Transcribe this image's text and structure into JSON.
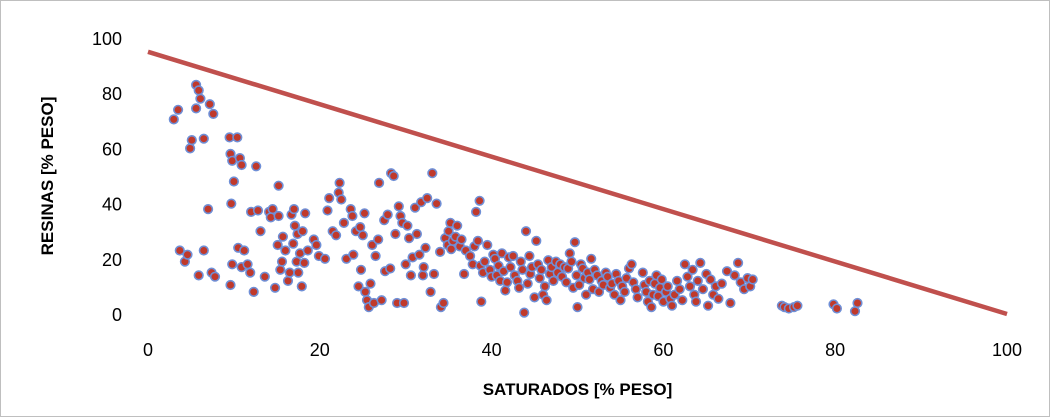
{
  "chart_data": {
    "type": "scatter",
    "title": "",
    "xlabel": "SATURADOS [% PESO]",
    "ylabel": "RESINAS [% PESO]",
    "xlim": [
      0,
      100
    ],
    "ylim": [
      0,
      100
    ],
    "x_ticks": [
      "0",
      "20",
      "40",
      "60",
      "80",
      "100"
    ],
    "y_ticks": [
      "0",
      "20",
      "40",
      "60",
      "80",
      "100"
    ],
    "grid": false,
    "legend": "none",
    "marker_fill": "#c0392b",
    "marker_edge": "#6f8fd6",
    "line_color": "#c0504d",
    "lines": [
      {
        "x": [
          0,
          100
        ],
        "y": [
          95,
          0
        ]
      }
    ],
    "points": [
      [
        3.0,
        70.5
      ],
      [
        3.5,
        74
      ],
      [
        3.7,
        23
      ],
      [
        4.3,
        19
      ],
      [
        4.6,
        21.5
      ],
      [
        4.9,
        60
      ],
      [
        5.1,
        63
      ],
      [
        5.6,
        83
      ],
      [
        5.9,
        81
      ],
      [
        5.6,
        74.5
      ],
      [
        6.1,
        78
      ],
      [
        5.9,
        14
      ],
      [
        6.5,
        63.5
      ],
      [
        6.5,
        23
      ],
      [
        7.0,
        38
      ],
      [
        7.2,
        76
      ],
      [
        7.6,
        72.5
      ],
      [
        7.4,
        15
      ],
      [
        7.8,
        13.5
      ],
      [
        9.5,
        64
      ],
      [
        9.6,
        58
      ],
      [
        9.8,
        55.5
      ],
      [
        10.0,
        48
      ],
      [
        10.4,
        64
      ],
      [
        10.7,
        56.5
      ],
      [
        10.9,
        54
      ],
      [
        9.7,
        40
      ],
      [
        9.8,
        18
      ],
      [
        9.6,
        10.5
      ],
      [
        10.5,
        24
      ],
      [
        10.9,
        17
      ],
      [
        11.2,
        23
      ],
      [
        11.6,
        18
      ],
      [
        11.9,
        15
      ],
      [
        12.0,
        37
      ],
      [
        12.3,
        8
      ],
      [
        12.6,
        53.5
      ],
      [
        12.8,
        37.5
      ],
      [
        13.1,
        30
      ],
      [
        13.6,
        13.5
      ],
      [
        14.1,
        37
      ],
      [
        14.5,
        38
      ],
      [
        14.3,
        35
      ],
      [
        14.8,
        9.5
      ],
      [
        15.1,
        25
      ],
      [
        15.2,
        35.5
      ],
      [
        15.2,
        46.5
      ],
      [
        15.4,
        16
      ],
      [
        15.6,
        19
      ],
      [
        15.7,
        28
      ],
      [
        16.0,
        23
      ],
      [
        16.3,
        12
      ],
      [
        16.5,
        15
      ],
      [
        16.7,
        36
      ],
      [
        16.9,
        25.5
      ],
      [
        17.0,
        38
      ],
      [
        17.1,
        32
      ],
      [
        17.3,
        19
      ],
      [
        17.4,
        29
      ],
      [
        17.5,
        15
      ],
      [
        17.7,
        22
      ],
      [
        17.9,
        10
      ],
      [
        18.0,
        30
      ],
      [
        18.2,
        18.5
      ],
      [
        18.3,
        36.5
      ],
      [
        18.6,
        23
      ],
      [
        19.3,
        27
      ],
      [
        19.6,
        25
      ],
      [
        19.9,
        21
      ],
      [
        20.6,
        20
      ],
      [
        20.9,
        37.5
      ],
      [
        21.1,
        42
      ],
      [
        21.5,
        30
      ],
      [
        21.9,
        28.5
      ],
      [
        22.2,
        44
      ],
      [
        22.3,
        47.5
      ],
      [
        22.5,
        41.5
      ],
      [
        22.8,
        33
      ],
      [
        23.1,
        20
      ],
      [
        23.6,
        38
      ],
      [
        23.8,
        35.5
      ],
      [
        23.9,
        21.5
      ],
      [
        24.2,
        30
      ],
      [
        24.5,
        10
      ],
      [
        24.7,
        31.5
      ],
      [
        24.8,
        16
      ],
      [
        25.0,
        28.5
      ],
      [
        25.2,
        36.5
      ],
      [
        25.3,
        8
      ],
      [
        25.5,
        5
      ],
      [
        25.7,
        2.5
      ],
      [
        25.9,
        11
      ],
      [
        26.1,
        25
      ],
      [
        26.3,
        4
      ],
      [
        26.5,
        21
      ],
      [
        26.8,
        27
      ],
      [
        26.9,
        47.5
      ],
      [
        27.2,
        5
      ],
      [
        27.5,
        34
      ],
      [
        27.6,
        15.5
      ],
      [
        27.9,
        36
      ],
      [
        28.2,
        16.5
      ],
      [
        28.3,
        51
      ],
      [
        28.6,
        50
      ],
      [
        28.8,
        29
      ],
      [
        29.0,
        4
      ],
      [
        29.2,
        39
      ],
      [
        29.4,
        35.5
      ],
      [
        29.6,
        33
      ],
      [
        29.8,
        4
      ],
      [
        30.0,
        18
      ],
      [
        30.2,
        32
      ],
      [
        30.4,
        27.5
      ],
      [
        30.6,
        14
      ],
      [
        30.8,
        20.5
      ],
      [
        31.1,
        38.5
      ],
      [
        31.3,
        29
      ],
      [
        31.6,
        21.5
      ],
      [
        31.8,
        40.5
      ],
      [
        32.0,
        14
      ],
      [
        32.1,
        17
      ],
      [
        32.3,
        24
      ],
      [
        32.5,
        42
      ],
      [
        32.9,
        8
      ],
      [
        33.1,
        51
      ],
      [
        33.3,
        14.5
      ],
      [
        33.6,
        40
      ],
      [
        34.0,
        22.5
      ],
      [
        34.1,
        2.5
      ],
      [
        34.4,
        4
      ],
      [
        34.6,
        27.5
      ],
      [
        34.9,
        25
      ],
      [
        35.0,
        30
      ],
      [
        35.2,
        33
      ],
      [
        35.3,
        23.5
      ],
      [
        35.5,
        26.5
      ],
      [
        35.8,
        28
      ],
      [
        36.0,
        32
      ],
      [
        36.3,
        24.5
      ],
      [
        36.5,
        27
      ],
      [
        36.8,
        14.5
      ],
      [
        37.0,
        23
      ],
      [
        37.5,
        21
      ],
      [
        37.8,
        18
      ],
      [
        38.0,
        24.5
      ],
      [
        38.2,
        37
      ],
      [
        38.4,
        26.5
      ],
      [
        38.6,
        41
      ],
      [
        38.7,
        17.5
      ],
      [
        38.8,
        4.5
      ],
      [
        39.0,
        15
      ],
      [
        39.2,
        19
      ],
      [
        39.5,
        25
      ],
      [
        39.8,
        16
      ],
      [
        40.0,
        13.5
      ],
      [
        40.2,
        21.5
      ],
      [
        40.4,
        20
      ],
      [
        40.6,
        14
      ],
      [
        40.8,
        17.5
      ],
      [
        41.0,
        12
      ],
      [
        41.2,
        22
      ],
      [
        41.4,
        15.5
      ],
      [
        41.6,
        8.5
      ],
      [
        41.8,
        11.5
      ],
      [
        42.0,
        20.5
      ],
      [
        42.2,
        17
      ],
      [
        42.5,
        21
      ],
      [
        42.7,
        14
      ],
      [
        43.0,
        12
      ],
      [
        43.2,
        9.5
      ],
      [
        43.4,
        19
      ],
      [
        43.6,
        16
      ],
      [
        43.8,
        0.5
      ],
      [
        44.0,
        30
      ],
      [
        44.2,
        11
      ],
      [
        44.4,
        21
      ],
      [
        44.5,
        14.5
      ],
      [
        44.7,
        17
      ],
      [
        45.0,
        6
      ],
      [
        45.2,
        26.5
      ],
      [
        45.4,
        18
      ],
      [
        45.6,
        13
      ],
      [
        45.8,
        16
      ],
      [
        46.0,
        7
      ],
      [
        46.2,
        10
      ],
      [
        46.4,
        5
      ],
      [
        46.6,
        19.5
      ],
      [
        46.8,
        14.5
      ],
      [
        47.0,
        17
      ],
      [
        47.2,
        12
      ],
      [
        47.5,
        19
      ],
      [
        47.7,
        15
      ],
      [
        48.0,
        18
      ],
      [
        48.2,
        13.5
      ],
      [
        48.5,
        17
      ],
      [
        48.7,
        11.5
      ],
      [
        48.9,
        16.5
      ],
      [
        49.1,
        22
      ],
      [
        49.3,
        19
      ],
      [
        49.5,
        9.5
      ],
      [
        49.7,
        26
      ],
      [
        49.9,
        14
      ],
      [
        50.0,
        2.5
      ],
      [
        50.2,
        10.5
      ],
      [
        50.4,
        18
      ],
      [
        50.6,
        16.5
      ],
      [
        50.8,
        13
      ],
      [
        51.0,
        7
      ],
      [
        51.2,
        15
      ],
      [
        51.4,
        12.5
      ],
      [
        51.6,
        20
      ],
      [
        51.8,
        9
      ],
      [
        52.0,
        16
      ],
      [
        52.3,
        14
      ],
      [
        52.5,
        8
      ],
      [
        52.8,
        12
      ],
      [
        53.0,
        10.5
      ],
      [
        53.3,
        15
      ],
      [
        53.5,
        13.5
      ],
      [
        53.8,
        9.5
      ],
      [
        54.0,
        11
      ],
      [
        54.3,
        7
      ],
      [
        54.5,
        14.5
      ],
      [
        54.8,
        12
      ],
      [
        55.0,
        5
      ],
      [
        55.2,
        10
      ],
      [
        55.5,
        8
      ],
      [
        55.7,
        13
      ],
      [
        56.0,
        16.5
      ],
      [
        56.3,
        18
      ],
      [
        56.5,
        11.5
      ],
      [
        56.8,
        9
      ],
      [
        57.0,
        6
      ],
      [
        57.6,
        15
      ],
      [
        57.8,
        10.5
      ],
      [
        58.0,
        8
      ],
      [
        58.2,
        4.5
      ],
      [
        58.4,
        12
      ],
      [
        58.6,
        2.5
      ],
      [
        58.8,
        7
      ],
      [
        59.0,
        11
      ],
      [
        59.2,
        14
      ],
      [
        59.4,
        6.5
      ],
      [
        59.6,
        9.5
      ],
      [
        59.8,
        12.5
      ],
      [
        60.0,
        4.5
      ],
      [
        60.3,
        8
      ],
      [
        60.5,
        10
      ],
      [
        60.8,
        5.5
      ],
      [
        61.0,
        3
      ],
      [
        61.3,
        7
      ],
      [
        61.6,
        12
      ],
      [
        61.9,
        9
      ],
      [
        62.2,
        5
      ],
      [
        62.5,
        18
      ],
      [
        62.8,
        13.5
      ],
      [
        63.1,
        10
      ],
      [
        63.4,
        16
      ],
      [
        63.6,
        7
      ],
      [
        63.8,
        4.5
      ],
      [
        64.0,
        12
      ],
      [
        64.3,
        18.5
      ],
      [
        64.6,
        9
      ],
      [
        65.0,
        14.5
      ],
      [
        65.2,
        3
      ],
      [
        65.5,
        12.5
      ],
      [
        65.8,
        7
      ],
      [
        66.1,
        10
      ],
      [
        66.4,
        5.5
      ],
      [
        66.8,
        11
      ],
      [
        67.4,
        15.5
      ],
      [
        67.8,
        4
      ],
      [
        68.3,
        14
      ],
      [
        68.7,
        18.5
      ],
      [
        69.0,
        11.5
      ],
      [
        69.4,
        9
      ],
      [
        69.8,
        13
      ],
      [
        70.1,
        10
      ],
      [
        70.4,
        12.5
      ],
      [
        73.8,
        3
      ],
      [
        74.1,
        2.5
      ],
      [
        74.6,
        2
      ],
      [
        75.2,
        2.5
      ],
      [
        75.6,
        3
      ],
      [
        79.8,
        3.5
      ],
      [
        80.2,
        2
      ],
      [
        82.3,
        1
      ],
      [
        82.6,
        4
      ]
    ]
  }
}
